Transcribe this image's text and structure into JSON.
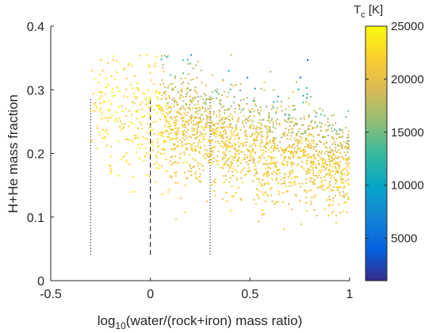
{
  "chart_data": {
    "type": "scatter",
    "xlabel_parts": [
      "log",
      "10",
      "(water/(rock+iron) mass ratio)"
    ],
    "ylabel": "H+He mass fraction",
    "xlim": [
      -0.5,
      1
    ],
    "ylim": [
      0,
      0.4
    ],
    "xticks": [
      "-0.5",
      "0",
      "0.5",
      "1"
    ],
    "yticks": [
      "0",
      "0.1",
      "0.2",
      "0.3",
      "0.4"
    ],
    "grid": false,
    "colorbar": {
      "label_main": "T",
      "label_sub": "c",
      "label_unit": " [K]",
      "range": [
        1000,
        25000
      ],
      "ticks": [
        "5000",
        "10000",
        "15000",
        "20000",
        "25000"
      ],
      "colormap": [
        "#352a87",
        "#0363e1",
        "#1485d4",
        "#06a7c6",
        "#38b99e",
        "#92bf73",
        "#d9ba56",
        "#fcce2e",
        "#f9fb0e"
      ]
    },
    "reference_lines": [
      {
        "x": -0.3,
        "style": "dotted"
      },
      {
        "x": 0,
        "style": "dashed"
      },
      {
        "x": 0.3,
        "style": "dotted"
      }
    ],
    "series": [
      {
        "trend": {
          "x_range": [
            -0.3,
            1
          ],
          "y_at_x0": 0.255,
          "slope": -0.075
        },
        "spread_sd": 0.05,
        "temperature_range": [
          1000,
          25000
        ],
        "point_count": 2000
      }
    ]
  }
}
